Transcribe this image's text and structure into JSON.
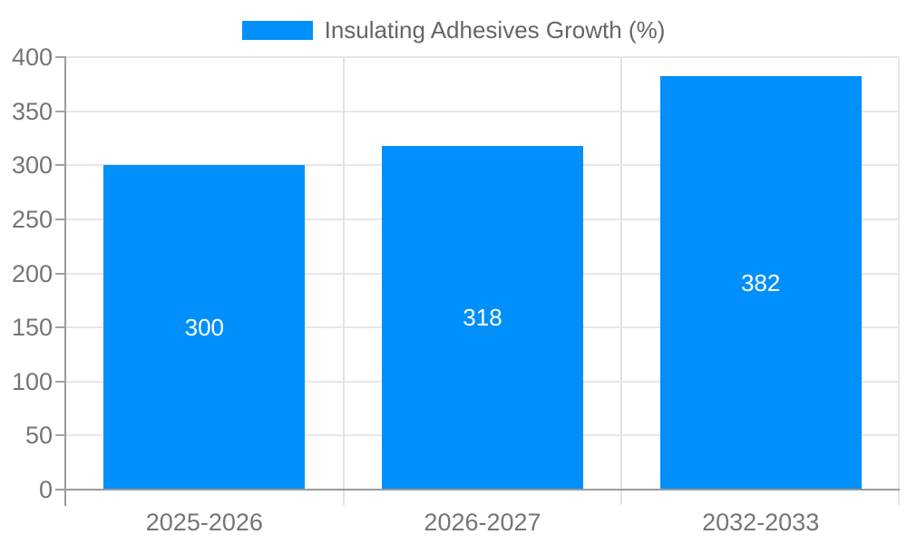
{
  "legend": {
    "label": "Insulating Adhesives Growth (%)",
    "position": "top"
  },
  "colors": {
    "bar": "#008FFB",
    "bar_label": "#ffffff",
    "axis_line": "#9b9b9b",
    "gridline": "#e7e7e7",
    "vertical_gridline": "#e3e3e3",
    "tick_mark": "#a3a3a3",
    "tick_label": "#757575",
    "legend_text": "#666666",
    "background": "#ffffff"
  },
  "chart_data": {
    "type": "bar",
    "title": "",
    "xlabel": "",
    "ylabel": "",
    "categories": [
      "2025-2026",
      "2026-2027",
      "2032-2033"
    ],
    "series": [
      {
        "name": "Insulating Adhesives Growth (%)",
        "values": [
          300,
          318,
          382
        ]
      }
    ],
    "data_labels": {
      "visible": true,
      "placement": "inside-center",
      "values": [
        "300",
        "318",
        "382"
      ]
    },
    "ylim": [
      0,
      400
    ],
    "ytick_step": 50,
    "ytick_labels": [
      "0",
      "50",
      "100",
      "150",
      "200",
      "250",
      "300",
      "350",
      "400"
    ],
    "grid": true,
    "legend_position": "top-center"
  }
}
